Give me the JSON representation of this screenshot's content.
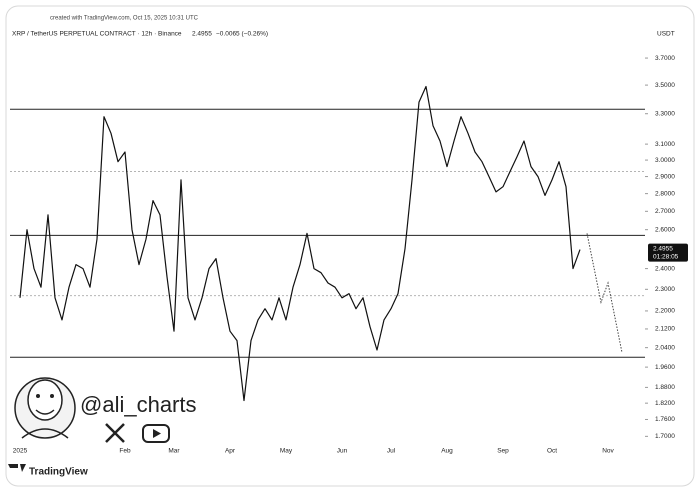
{
  "header": {
    "created": "created with TradingView.com, Oct 15, 2025 10:31 UTC"
  },
  "chart_data": {
    "type": "line",
    "title": "XRP / TetherUS PERPETUAL CONTRACT · 12h · Binance",
    "last": "2.4955",
    "change": "−0.0065 (−0.26%)",
    "currency": "USDT",
    "price_tag": {
      "value": 2.4955,
      "label": "2.4955",
      "countdown": "01:28:05"
    },
    "log_scale": true,
    "color": "#111111",
    "ylim": [
      1.67,
      3.84
    ],
    "yticks": [
      {
        "value": 3.7,
        "label": "3.7000"
      },
      {
        "value": 3.5,
        "label": "3.5000"
      },
      {
        "value": 3.3,
        "label": "3.3000"
      },
      {
        "value": 3.1,
        "label": "3.1000"
      },
      {
        "value": 3.0,
        "label": "3.0000"
      },
      {
        "value": 2.9,
        "label": "2.9000"
      },
      {
        "value": 2.8,
        "label": "2.8000"
      },
      {
        "value": 2.7,
        "label": "2.7000"
      },
      {
        "value": 2.6,
        "label": "2.6000"
      },
      {
        "value": 2.4,
        "label": "2.4000"
      },
      {
        "value": 2.3,
        "label": "2.3000"
      },
      {
        "value": 2.2,
        "label": "2.2000"
      },
      {
        "value": 2.12,
        "label": "2.1200"
      },
      {
        "value": 2.04,
        "label": "2.0400"
      },
      {
        "value": 1.96,
        "label": "1.9600"
      },
      {
        "value": 1.88,
        "label": "1.8800"
      },
      {
        "value": 1.82,
        "label": "1.8200"
      },
      {
        "value": 1.76,
        "label": "1.7600"
      },
      {
        "value": 1.7,
        "label": "1.7000"
      }
    ],
    "categories": [
      "2025",
      null,
      null,
      null,
      null,
      null,
      null,
      null,
      null,
      null,
      null,
      null,
      null,
      null,
      null,
      "Feb",
      null,
      null,
      null,
      null,
      null,
      null,
      "Mar",
      null,
      null,
      null,
      null,
      null,
      null,
      null,
      "Apr",
      null,
      null,
      null,
      null,
      null,
      null,
      null,
      "May",
      null,
      null,
      null,
      null,
      null,
      null,
      null,
      "Jun",
      null,
      null,
      null,
      null,
      null,
      null,
      "Jul",
      null,
      null,
      null,
      null,
      null,
      null,
      null,
      "Aug",
      null,
      null,
      null,
      null,
      null,
      null,
      null,
      "Sep",
      null,
      null,
      null,
      null,
      null,
      null,
      "Oct",
      null,
      null,
      null,
      null,
      null,
      null,
      null,
      "Nov",
      null,
      null,
      null,
      null,
      null,
      null
    ],
    "values": [
      2.26,
      2.6,
      2.4,
      2.31,
      2.68,
      2.26,
      2.16,
      2.31,
      2.42,
      2.4,
      2.31,
      2.55,
      3.28,
      3.17,
      2.99,
      3.05,
      2.6,
      2.42,
      2.55,
      2.76,
      2.68,
      2.36,
      2.11,
      2.88,
      2.26,
      2.16,
      2.26,
      2.4,
      2.45,
      2.26,
      2.11,
      2.07,
      1.83,
      2.07,
      2.16,
      2.21,
      2.16,
      2.26,
      2.16,
      2.31,
      2.42,
      2.58,
      2.4,
      2.38,
      2.33,
      2.31,
      2.26,
      2.28,
      2.21,
      2.26,
      2.13,
      2.03,
      2.16,
      2.21,
      2.28,
      2.5,
      2.88,
      3.38,
      3.49,
      3.22,
      3.12,
      2.96,
      3.12,
      3.28,
      3.17,
      3.05,
      2.99,
      2.9,
      2.81,
      2.84,
      2.93,
      3.02,
      3.12,
      2.96,
      2.9,
      2.79,
      2.88,
      2.99,
      2.84,
      2.4,
      2.4955,
      null,
      null,
      null,
      null,
      null,
      null,
      null,
      null,
      null,
      null
    ],
    "levels": [
      {
        "value": 3.33,
        "style": "solid"
      },
      {
        "value": 2.93,
        "style": "dotted"
      },
      {
        "value": 2.57,
        "style": "solid"
      },
      {
        "value": 2.27,
        "style": "dotted"
      },
      {
        "value": 2.0,
        "style": "solid"
      }
    ],
    "projection": {
      "index": [
        81,
        83,
        84,
        86
      ],
      "values": [
        2.58,
        2.24,
        2.33,
        2.02
      ]
    }
  },
  "watermark": {
    "handle": "@ali_charts",
    "logo": "TradingView"
  }
}
